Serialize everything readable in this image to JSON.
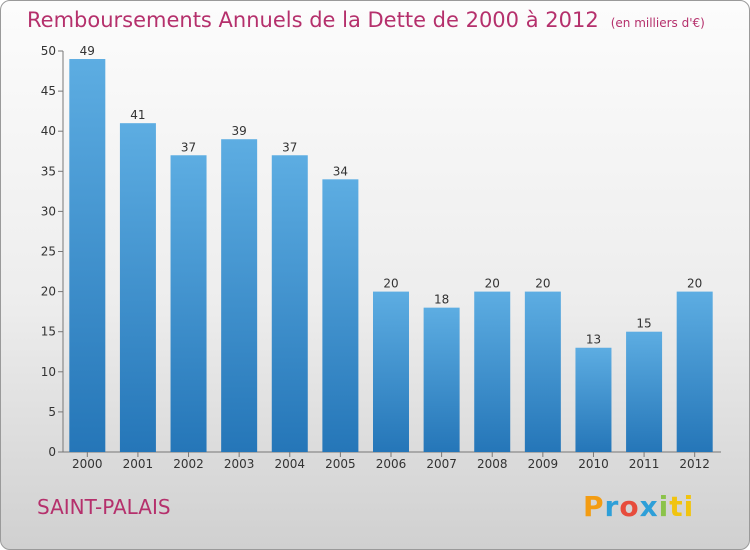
{
  "header": {
    "title": "Remboursements Annuels de la Dette de 2000 à 2012",
    "unit": "(en milliers d'€)"
  },
  "footer": {
    "commune": "SAINT-PALAIS",
    "logo": [
      "P",
      "r",
      "o",
      "x",
      "i",
      "ti"
    ]
  },
  "colors": {
    "title": "#b5306c",
    "bar_top": "#5dade2",
    "bar_bottom": "#2576b8"
  },
  "chart_data": {
    "type": "bar",
    "categories": [
      "2000",
      "2001",
      "2002",
      "2003",
      "2004",
      "2005",
      "2006",
      "2007",
      "2008",
      "2009",
      "2010",
      "2011",
      "2012"
    ],
    "values": [
      49,
      41,
      37,
      39,
      37,
      34,
      20,
      18,
      20,
      20,
      13,
      15,
      20
    ],
    "ylim": [
      0,
      50
    ],
    "yticks": [
      0,
      5,
      10,
      15,
      20,
      25,
      30,
      35,
      40,
      45,
      50
    ],
    "grid": false,
    "data_labels": true
  }
}
